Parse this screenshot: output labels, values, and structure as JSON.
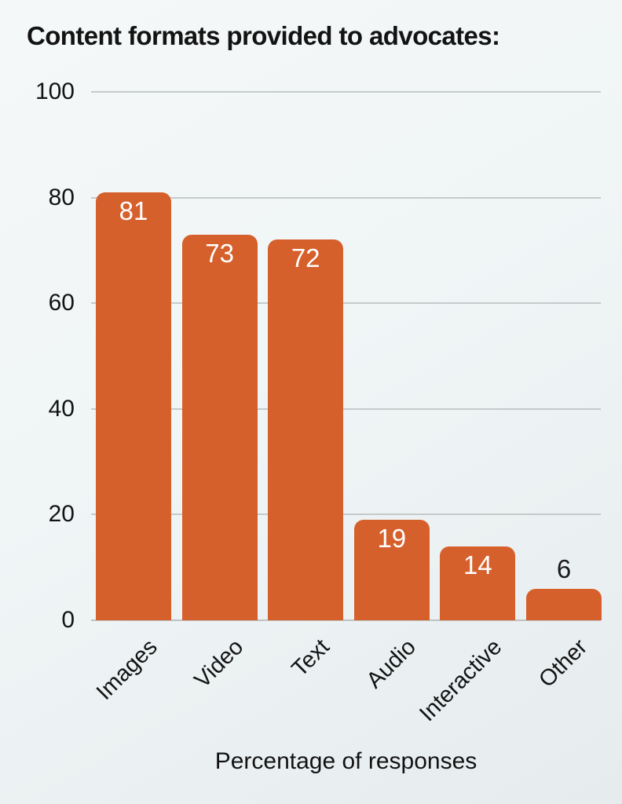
{
  "chart_data": {
    "type": "bar",
    "title": "Content formats provided to advocates:",
    "xlabel": "Percentage of responses",
    "ylabel": "",
    "categories": [
      "Images",
      "Video",
      "Text",
      "Audio",
      "Interactive",
      "Other"
    ],
    "values": [
      81,
      73,
      72,
      19,
      14,
      6
    ],
    "ylim": [
      0,
      100
    ],
    "yticks": [
      0,
      20,
      40,
      60,
      80,
      100
    ],
    "grid": true,
    "legend": false,
    "bar_value_labels": [
      81,
      73,
      72,
      19,
      14,
      6
    ],
    "colors": {
      "bar": "#d6602c",
      "value_label_inside": "#ffffff",
      "value_label_outside": "#1b1b1b",
      "gridline": "#c5caca",
      "text": "#131313",
      "background_start": "#f5f8f8",
      "background_end": "#e6ecee"
    }
  }
}
